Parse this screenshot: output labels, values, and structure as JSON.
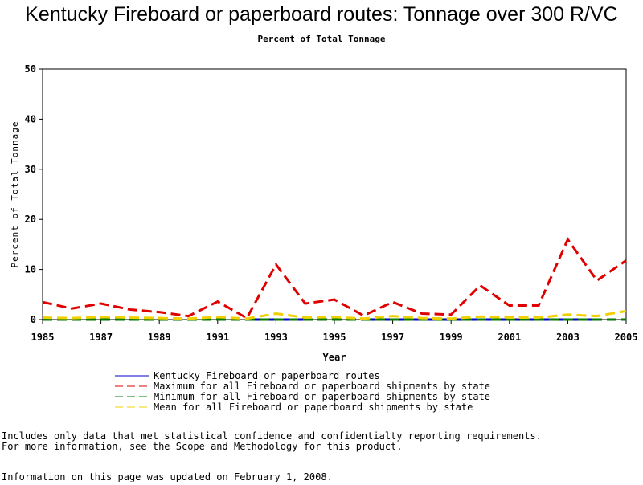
{
  "chart_data": {
    "type": "line",
    "title": "Kentucky Fireboard or paperboard routes: Tonnage over 300 R/VC",
    "subtitle": "Percent of Total Tonnage",
    "x_label": "Year",
    "y_label": "Percent of Total Tonnage",
    "x": [
      1985,
      1986,
      1987,
      1988,
      1989,
      1990,
      1991,
      1992,
      1993,
      1994,
      1995,
      1996,
      1997,
      1998,
      1999,
      2000,
      2001,
      2002,
      2003,
      2004,
      2005
    ],
    "xlim": [
      1985,
      2005
    ],
    "xticks": [
      1985,
      1987,
      1989,
      1991,
      1993,
      1995,
      1997,
      1999,
      2001,
      2003,
      2005
    ],
    "ylim": [
      0,
      50
    ],
    "yticks": [
      0,
      10,
      20,
      30,
      40,
      50
    ],
    "series": [
      {
        "name": "Kentucky Fireboard or paperboard routes",
        "color": "#0000cc",
        "line_style": "solid",
        "values": [
          null,
          null,
          null,
          null,
          null,
          null,
          null,
          0,
          0,
          0,
          null,
          0,
          0,
          0,
          0,
          0,
          0,
          0,
          0,
          0,
          null
        ]
      },
      {
        "name": "Maximum for all Fireboard or paperboard shipments by state",
        "color": "#e00000",
        "line_style": "dashed",
        "values": [
          3.5,
          2.2,
          3.2,
          2,
          1.5,
          0.7,
          3.6,
          0.3,
          11,
          3.2,
          4,
          0.8,
          3.5,
          1.2,
          1,
          6.8,
          2.8,
          2.8,
          16,
          7.8,
          11.8
        ]
      },
      {
        "name": "Minimum for all Fireboard or paperboard shipments by state",
        "color": "#007a00",
        "line_style": "dashed",
        "values": [
          0,
          0,
          0,
          0,
          0,
          0,
          0,
          0,
          0,
          0,
          0,
          0,
          0,
          0,
          0,
          0,
          0,
          0,
          0,
          0,
          0
        ]
      },
      {
        "name": "Mean for all Fireboard or paperboard shipments by state",
        "color": "#f0d000",
        "line_style": "dashed",
        "values": [
          0.4,
          0.3,
          0.5,
          0.4,
          0.3,
          0.2,
          0.5,
          0.2,
          1.2,
          0.4,
          0.5,
          0.2,
          0.7,
          0.3,
          0.2,
          0.6,
          0.4,
          0.4,
          1,
          0.7,
          1.7
        ]
      }
    ]
  },
  "notes": [
    "Includes only data that met statistical confidence and confidentialty reporting requirements.",
    "For more information, see the Scope and Methodology for this product."
  ],
  "footer": "Information on this page was updated on February 1, 2008."
}
